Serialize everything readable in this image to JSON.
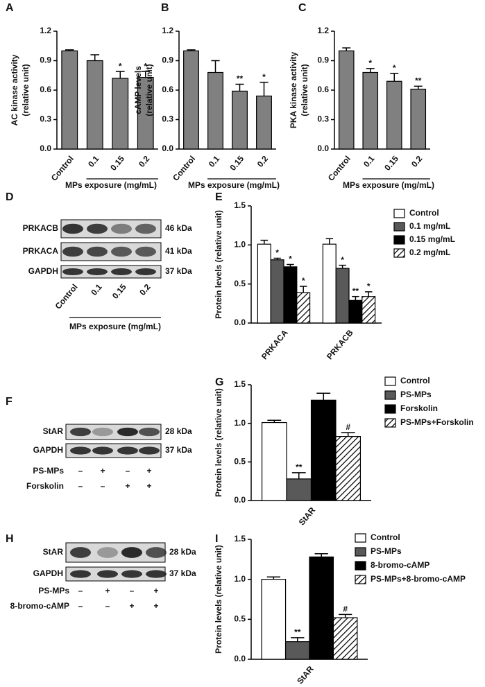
{
  "panel_labels": [
    "A",
    "B",
    "C",
    "D",
    "E",
    "F",
    "G",
    "H",
    "I"
  ],
  "chart_data": [
    {
      "type": "bar",
      "y_label": [
        "AC kinase activity",
        "(relative unit)"
      ],
      "x_label": "MPs exposure (mg/mL)",
      "categories": [
        "Control",
        "0.1",
        "0.15",
        "0.2"
      ],
      "values": [
        1.0,
        0.9,
        0.72,
        0.73
      ],
      "errors": [
        0.01,
        0.06,
        0.07,
        0.06
      ],
      "annotations": [
        null,
        null,
        "*",
        "*"
      ],
      "color": "#808080",
      "ylim": [
        0,
        1.2
      ],
      "yticks": [
        {
          "value": 0,
          "label": "0.0"
        },
        0.3,
        0.6,
        0.9,
        1.2
      ]
    },
    {
      "type": "bar",
      "y_label": [
        "cAMP levels",
        "(relative unit)"
      ],
      "x_label": "MPs exposure (mg/mL)",
      "categories": [
        "Control",
        "0.1",
        "0.15",
        "0.2"
      ],
      "values": [
        1.0,
        0.78,
        0.59,
        0.54
      ],
      "errors": [
        0.01,
        0.12,
        0.07,
        0.14
      ],
      "annotations": [
        null,
        null,
        "**",
        "*"
      ],
      "color": "#808080",
      "ylim": [
        0,
        1.2
      ],
      "yticks": [
        {
          "value": 0,
          "label": "0.0"
        },
        0.3,
        0.6,
        0.9,
        1.2
      ]
    },
    {
      "type": "bar",
      "y_label": [
        "PKA kinase activity",
        "(relative unit)"
      ],
      "x_label": "MPs exposure (mg/mL)",
      "categories": [
        "Control",
        "0.1",
        "0.15",
        "0.2"
      ],
      "values": [
        1.0,
        0.78,
        0.69,
        0.61
      ],
      "errors": [
        0.03,
        0.04,
        0.08,
        0.03
      ],
      "annotations": [
        null,
        "*",
        "*",
        "**"
      ],
      "color": "#808080",
      "ylim": [
        0,
        1.2
      ],
      "yticks": [
        {
          "value": 0,
          "label": "0.0"
        },
        0.3,
        0.6,
        0.9,
        1.2
      ]
    },
    {
      "type": "bar",
      "y_label": [
        "Protein levels (relative unit)"
      ],
      "categories": [
        "PRKACA",
        "PRKACB"
      ],
      "series": [
        {
          "name": "Control",
          "color": "#ffffff",
          "values": [
            1.01,
            1.01
          ],
          "errors": [
            0.05,
            0.07
          ],
          "annotations": [
            null,
            null
          ]
        },
        {
          "name": "0.1 mg/mL",
          "color": "#595959",
          "values": [
            0.81,
            0.7
          ],
          "errors": [
            0.02,
            0.04
          ],
          "annotations": [
            "*",
            "*"
          ]
        },
        {
          "name": "0.15 mg/mL",
          "color": "#000000",
          "values": [
            0.72,
            0.29
          ],
          "errors": [
            0.03,
            0.05
          ],
          "annotations": [
            "*",
            "**"
          ]
        },
        {
          "name": "0.2 mg/mL",
          "color": "#ffffff",
          "pattern": "hatch",
          "values": [
            0.39,
            0.34
          ],
          "errors": [
            0.08,
            0.06
          ],
          "annotations": [
            "*",
            "*"
          ]
        }
      ],
      "ylim": [
        0,
        1.5
      ],
      "yticks": [
        {
          "value": 0,
          "label": "0.0"
        },
        0.5,
        {
          "value": 1,
          "label": "1.0"
        },
        1.5
      ],
      "legend": "right"
    },
    {
      "type": "bar",
      "y_label": [
        "Protein levels (relative unit)"
      ],
      "categories": [
        "StAR"
      ],
      "series": [
        {
          "name": "Control",
          "color": "#ffffff",
          "values": [
            1.01
          ],
          "errors": [
            0.03
          ],
          "annotations": [
            null
          ]
        },
        {
          "name": "PS-MPs",
          "color": "#595959",
          "values": [
            0.28
          ],
          "errors": [
            0.08
          ],
          "annotations": [
            "**"
          ]
        },
        {
          "name": "Forskolin",
          "color": "#000000",
          "values": [
            1.3
          ],
          "errors": [
            0.09
          ],
          "annotations": [
            null
          ]
        },
        {
          "name": "PS-MPs+Forskolin",
          "color": "#ffffff",
          "pattern": "hatch",
          "values": [
            0.83
          ],
          "errors": [
            0.05
          ],
          "annotations": [
            "#"
          ]
        }
      ],
      "ylim": [
        0,
        1.5
      ],
      "yticks": [
        {
          "value": 0,
          "label": "0.0"
        },
        0.5,
        {
          "value": 1,
          "label": "1.0"
        },
        1.5
      ],
      "legend": "right"
    },
    {
      "type": "bar",
      "y_label": [
        "Protein levels (relative unit)"
      ],
      "categories": [
        "StAR"
      ],
      "series": [
        {
          "name": "Control",
          "color": "#ffffff",
          "values": [
            1.0
          ],
          "errors": [
            0.03
          ],
          "annotations": [
            null
          ]
        },
        {
          "name": "PS-MPs",
          "color": "#595959",
          "values": [
            0.22
          ],
          "errors": [
            0.05
          ],
          "annotations": [
            "**"
          ]
        },
        {
          "name": "8-bromo-cAMP",
          "color": "#000000",
          "values": [
            1.28
          ],
          "errors": [
            0.04
          ],
          "annotations": [
            null
          ]
        },
        {
          "name": "PS-MPs+8-bromo-cAMP",
          "color": "#ffffff",
          "pattern": "hatch",
          "values": [
            0.52
          ],
          "errors": [
            0.04
          ],
          "annotations": [
            "#"
          ]
        }
      ],
      "ylim": [
        0,
        1.5
      ],
      "yticks": [
        {
          "value": 0,
          "label": "0.0"
        },
        0.5,
        {
          "value": 1,
          "label": "1.0"
        },
        1.5
      ],
      "legend": "right"
    }
  ],
  "blots": [
    {
      "rows": [
        {
          "protein": "PRKACB",
          "size": "46 kDa"
        },
        {
          "protein": "PRKACA",
          "size": "41 kDa"
        },
        {
          "protein": "GAPDH",
          "size": "37 kDa"
        }
      ],
      "lanes": [
        "Control",
        "0.1",
        "0.15",
        "0.2"
      ],
      "x_label": "MPs exposure (mg/mL)"
    },
    {
      "rows": [
        {
          "protein": "StAR",
          "size": "28 kDa"
        },
        {
          "protein": "GAPDH",
          "size": "37 kDa"
        }
      ],
      "treatments": [
        {
          "name": "PS-MPs",
          "signs": [
            "–",
            "+",
            "–",
            "+"
          ]
        },
        {
          "name": "Forskolin",
          "signs": [
            "–",
            "–",
            "+",
            "+"
          ]
        }
      ]
    },
    {
      "rows": [
        {
          "protein": "StAR",
          "size": "28 kDa"
        },
        {
          "protein": "GAPDH",
          "size": "37 kDa"
        }
      ],
      "treatments": [
        {
          "name": "PS-MPs",
          "signs": [
            "–",
            "+",
            "–",
            "+"
          ]
        },
        {
          "name": "8-bromo-cAMP",
          "signs": [
            "–",
            "–",
            "+",
            "+"
          ]
        }
      ]
    }
  ]
}
